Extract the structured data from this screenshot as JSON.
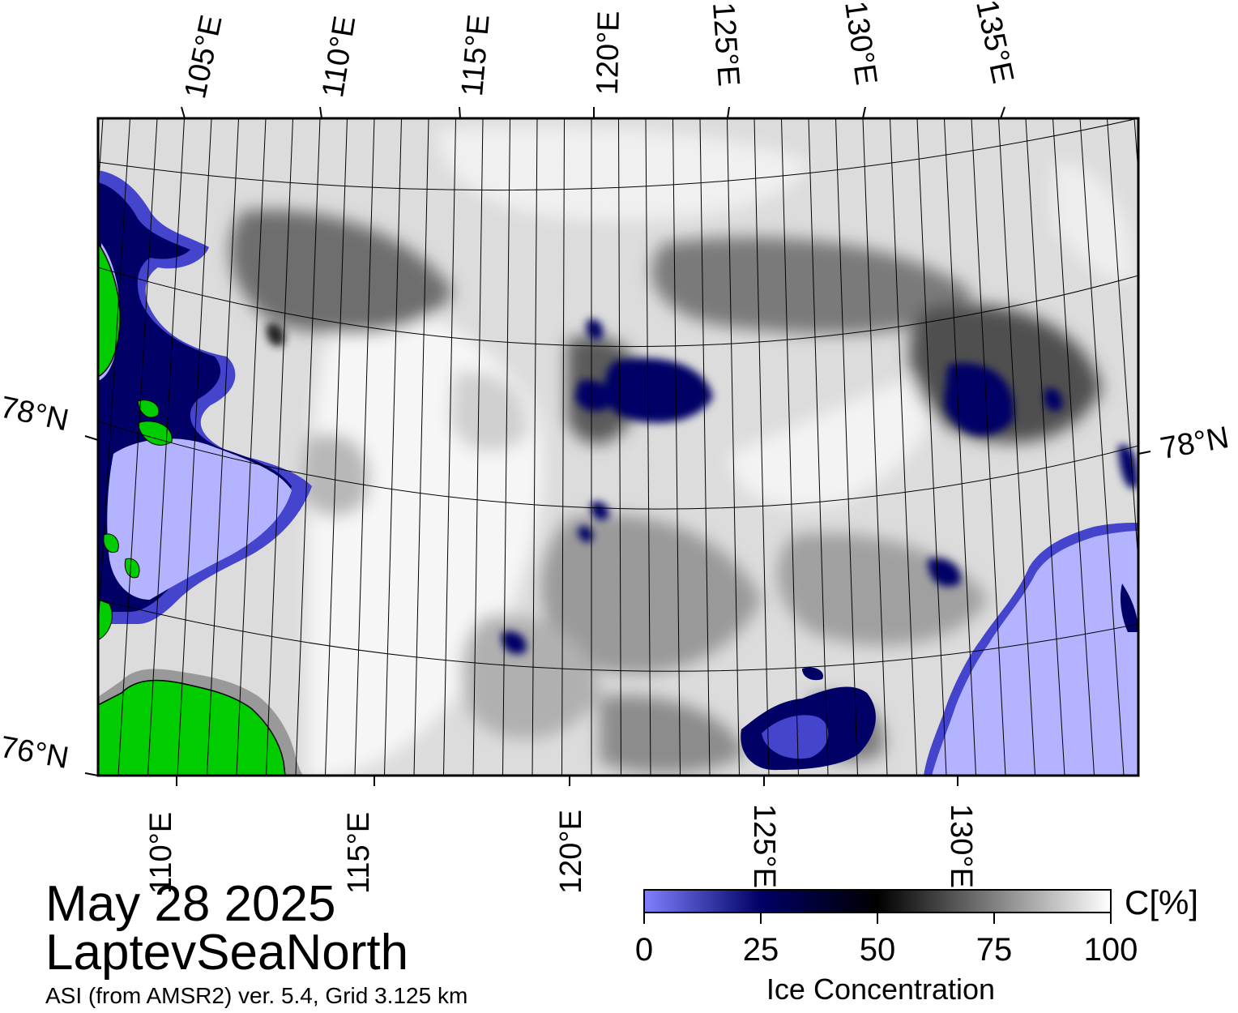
{
  "map": {
    "top_lon_labels": [
      "105°E",
      "110°E",
      "115°E",
      "120°E",
      "125°E",
      "130°E",
      "135°E"
    ],
    "bottom_lon_labels": [
      "110°E",
      "115°E",
      "120°E",
      "125°E",
      "130°E"
    ],
    "left_lat_labels": [
      "78°N",
      "76°N"
    ],
    "right_lat_labels": [
      "78°N"
    ],
    "colors": {
      "land": "#00cc00",
      "open_water": "#b3b3ff",
      "low_ice": "#4444cc",
      "mid_ice": "#000066",
      "coast_mask": "#999999"
    }
  },
  "caption": {
    "date": "May 28 2025",
    "region": "LaptevSeaNorth",
    "source": "ASI (from AMSR2) ver. 5.4,  Grid 3.125 km"
  },
  "colorbar": {
    "unit": "C[%]",
    "ticks": [
      "0",
      "25",
      "50",
      "75",
      "100"
    ],
    "title": "Ice Concentration",
    "stops": [
      "#8080ff",
      "#000066",
      "#000000",
      "#808080",
      "#ffffff"
    ]
  }
}
